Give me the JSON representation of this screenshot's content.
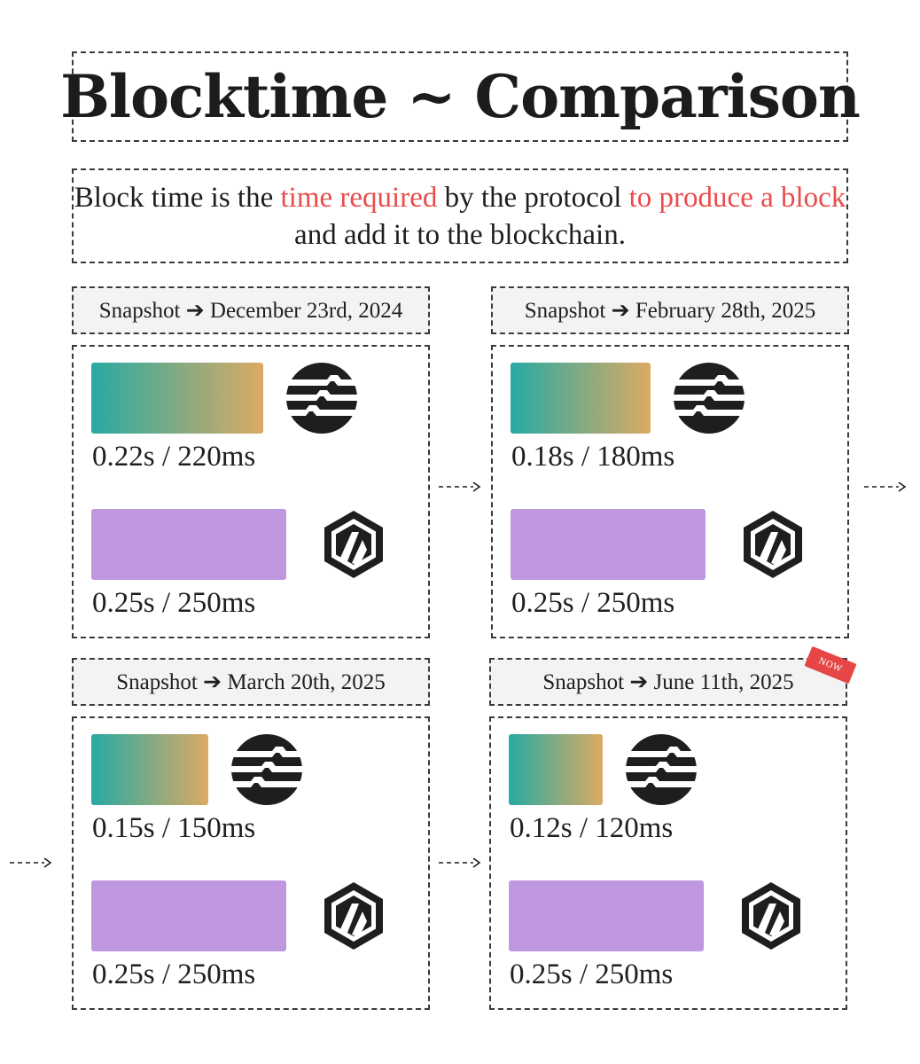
{
  "title": "Blocktime ~ Comparison",
  "subtitle": {
    "parts": [
      {
        "text": "Block time is  the ",
        "highlight": false
      },
      {
        "text": "time required",
        "highlight": true
      },
      {
        "text": " by the protocol ",
        "highlight": false
      },
      {
        "text": "to produce a block",
        "highlight": true
      },
      {
        "text": " and add it to the blockchain.",
        "highlight": false
      }
    ]
  },
  "colors": {
    "highlight": "#ea4b4b",
    "aptos_gradient_start": "#27aaa3",
    "aptos_gradient_end": "#dcaa63",
    "arbitrum_bar": "#be97df",
    "now_badge": "#e64646"
  },
  "badge": {
    "label": "NOW"
  },
  "icons": {
    "chain_a": "aptos-logo-icon",
    "chain_b": "arbitrum-logo-icon",
    "flow_arrow": "dashed-arrow-icon"
  },
  "chart_data": {
    "type": "bar",
    "unit": "ms",
    "scale_max_ms": 250,
    "snapshots": [
      {
        "label": "Snapshot ➔ December 23rd, 2024",
        "bars": [
          {
            "logo": "aptos-logo-icon",
            "value_ms": 220,
            "label": "0.22s / 220ms"
          },
          {
            "logo": "arbitrum-logo-icon",
            "value_ms": 250,
            "label": "0.25s / 250ms"
          }
        ]
      },
      {
        "label": "Snapshot ➔ February 28th, 2025",
        "bars": [
          {
            "logo": "aptos-logo-icon",
            "value_ms": 180,
            "label": "0.18s / 180ms"
          },
          {
            "logo": "arbitrum-logo-icon",
            "value_ms": 250,
            "label": "0.25s / 250ms"
          }
        ]
      },
      {
        "label": "Snapshot ➔ March 20th, 2025",
        "bars": [
          {
            "logo": "aptos-logo-icon",
            "value_ms": 150,
            "label": "0.15s / 150ms"
          },
          {
            "logo": "arbitrum-logo-icon",
            "value_ms": 250,
            "label": "0.25s / 250ms"
          }
        ]
      },
      {
        "label": "Snapshot ➔ June 11th, 2025",
        "bars": [
          {
            "logo": "aptos-logo-icon",
            "value_ms": 120,
            "label": "0.12s / 120ms"
          },
          {
            "logo": "arbitrum-logo-icon",
            "value_ms": 250,
            "label": "0.25s / 250ms"
          }
        ]
      }
    ]
  }
}
